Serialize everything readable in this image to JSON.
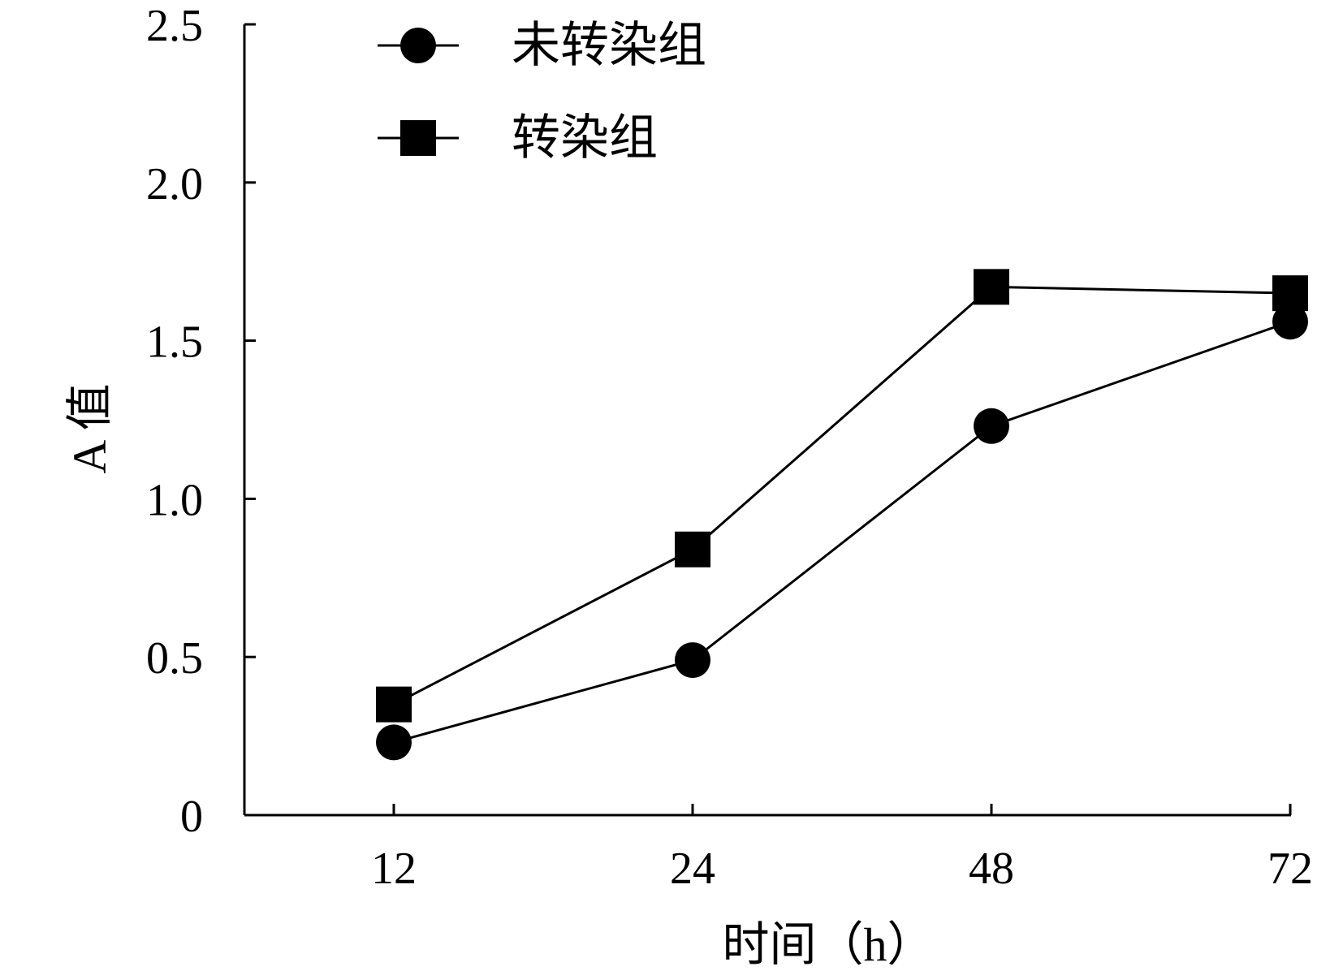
{
  "chart_data": {
    "type": "line",
    "xlabel": "时间（h）",
    "ylabel": "A 值",
    "categories": [
      "12",
      "24",
      "48",
      "72"
    ],
    "ylim": [
      0,
      2.5
    ],
    "yticks": [
      "0",
      "0.5",
      "1.0",
      "1.5",
      "2.0",
      "2.5"
    ],
    "grid": false,
    "legend_position": "top-left",
    "series": [
      {
        "name": "未转染组",
        "marker": "circle",
        "values": [
          0.23,
          0.49,
          1.23,
          1.56
        ]
      },
      {
        "name": "转染组",
        "marker": "square",
        "values": [
          0.35,
          0.84,
          1.67,
          1.65
        ]
      }
    ],
    "colors": {
      "line": "#000000",
      "marker": "#000000"
    }
  }
}
